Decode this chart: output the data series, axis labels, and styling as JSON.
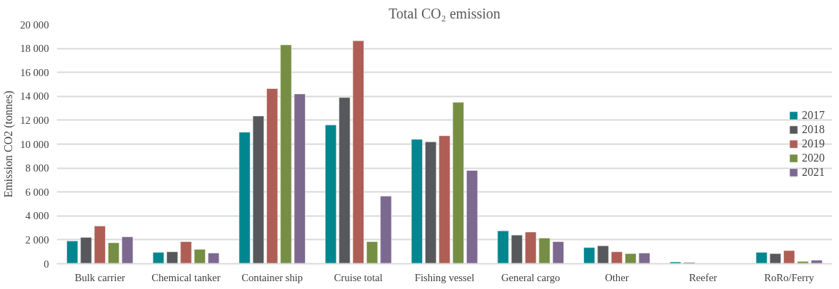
{
  "chart_data": {
    "type": "bar",
    "title": "Total CO₂ emission",
    "ylabel": "Emission CO2 (tonnes)",
    "categories": [
      "Bulk carrier",
      "Chemical tanker",
      "Container ship",
      "Cruise total",
      "Fishing vessel",
      "General cargo",
      "Other",
      "Reefer",
      "RoRo/Ferry"
    ],
    "series": [
      {
        "name": "2017",
        "color": "#00868f",
        "values": [
          1900,
          950,
          11000,
          11600,
          10400,
          2750,
          1350,
          150,
          950
        ]
      },
      {
        "name": "2018",
        "color": "#57585c",
        "values": [
          2200,
          1000,
          12350,
          13900,
          10200,
          2400,
          1500,
          100,
          850
        ]
      },
      {
        "name": "2019",
        "color": "#ae5e55",
        "values": [
          3150,
          1850,
          14650,
          18650,
          10700,
          2650,
          1000,
          null,
          1100
        ]
      },
      {
        "name": "2020",
        "color": "#758e44",
        "values": [
          1750,
          1200,
          18300,
          1850,
          13500,
          2150,
          850,
          null,
          200
        ]
      },
      {
        "name": "2021",
        "color": "#7d6890",
        "values": [
          2250,
          900,
          14200,
          5650,
          7800,
          1850,
          900,
          null,
          300
        ]
      }
    ],
    "ylim": [
      0,
      20000
    ],
    "yticks": [
      {
        "value": 0,
        "label": "0"
      },
      {
        "value": 2000,
        "label": "2 000"
      },
      {
        "value": 4000,
        "label": "4 000"
      },
      {
        "value": 6000,
        "label": "6 000"
      },
      {
        "value": 8000,
        "label": "8 000"
      },
      {
        "value": 10000,
        "label": "10 000"
      },
      {
        "value": 12000,
        "label": "12 000"
      },
      {
        "value": 14000,
        "label": "14 000"
      },
      {
        "value": 16000,
        "label": "16 000"
      },
      {
        "value": 18000,
        "label": "18 000"
      },
      {
        "value": 20000,
        "label": "20 000"
      }
    ],
    "grid": "y",
    "legend": "right"
  }
}
